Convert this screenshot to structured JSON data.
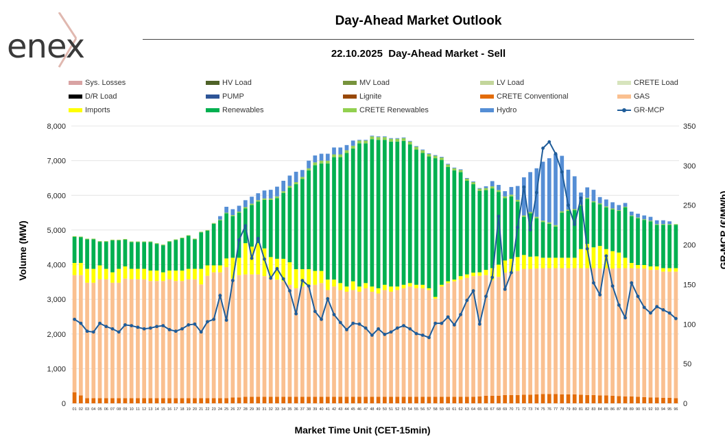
{
  "logo": {
    "text": "enex"
  },
  "header": {
    "title": "Day-Ahead Market Outlook",
    "subtitle": "22.10.2025  Day-Ahead Market - Sell"
  },
  "legend": [
    {
      "label": "Sys. Losses",
      "color": "#d9a3a3"
    },
    {
      "label": "HV Load",
      "color": "#4f6228"
    },
    {
      "label": "MV Load",
      "color": "#77933c"
    },
    {
      "label": "LV Load",
      "color": "#c3d69b"
    },
    {
      "label": "CRETE Load",
      "color": "#d7e4bd"
    },
    {
      "label": "D/R Load",
      "color": "#000000"
    },
    {
      "label": "PUMP",
      "color": "#2e5597"
    },
    {
      "label": "Lignite",
      "color": "#984807"
    },
    {
      "label": "CRETE Conventional",
      "color": "#e36c09"
    },
    {
      "label": "GAS",
      "color": "#fac090"
    },
    {
      "label": "Imports",
      "color": "#ffff00"
    },
    {
      "label": "Renewables",
      "color": "#00b050"
    },
    {
      "label": "CRETE Renewables",
      "color": "#92d050"
    },
    {
      "label": "Hydro",
      "color": "#558ed5"
    },
    {
      "label": "GR-MCP",
      "color": "#1f5c99"
    }
  ],
  "chart_data": {
    "type": "bar",
    "title": "22.10.2025  Day-Ahead Market - Sell",
    "xlabel": "Market Time Unit (CET-15min)",
    "ylabel": "Volume (MW)",
    "y2label": "GR-MCP (€/MWh)",
    "ylim": [
      0,
      8000
    ],
    "y2lim": [
      0,
      350
    ],
    "yticks": [
      "0",
      "1,000",
      "2,000",
      "3,000",
      "4,000",
      "5,000",
      "6,000",
      "7,000",
      "8,000"
    ],
    "y2ticks": [
      "0",
      "50",
      "100",
      "150",
      "200",
      "250",
      "300",
      "350"
    ],
    "categories": [
      "01",
      "02",
      "03",
      "04",
      "05",
      "06",
      "07",
      "08",
      "09",
      "10",
      "11",
      "12",
      "13",
      "14",
      "15",
      "16",
      "17",
      "18",
      "19",
      "20",
      "21",
      "22",
      "23",
      "24",
      "25",
      "26",
      "27",
      "28",
      "29",
      "30",
      "31",
      "32",
      "33",
      "34",
      "35",
      "36",
      "37",
      "38",
      "39",
      "40",
      "41",
      "42",
      "43",
      "44",
      "45",
      "46",
      "47",
      "48",
      "49",
      "50",
      "51",
      "52",
      "53",
      "54",
      "55",
      "56",
      "57",
      "58",
      "59",
      "60",
      "61",
      "62",
      "63",
      "64",
      "65",
      "66",
      "67",
      "68",
      "69",
      "70",
      "71",
      "72",
      "73",
      "74",
      "75",
      "76",
      "77",
      "78",
      "79",
      "80",
      "81",
      "82",
      "83",
      "84",
      "85",
      "86",
      "87",
      "88",
      "89",
      "90",
      "91",
      "92",
      "93",
      "94",
      "95",
      "96"
    ],
    "stacked_series": [
      {
        "name": "CRETE Conventional",
        "color": "#e36c09",
        "values": [
          320,
          230,
          150,
          150,
          150,
          150,
          150,
          150,
          150,
          150,
          150,
          150,
          150,
          150,
          150,
          150,
          150,
          150,
          150,
          150,
          150,
          150,
          150,
          150,
          150,
          170,
          170,
          190,
          190,
          190,
          190,
          190,
          190,
          190,
          190,
          190,
          190,
          190,
          190,
          190,
          190,
          190,
          190,
          190,
          190,
          190,
          190,
          190,
          190,
          190,
          190,
          190,
          190,
          190,
          190,
          190,
          190,
          190,
          190,
          190,
          190,
          190,
          190,
          190,
          200,
          220,
          220,
          220,
          240,
          240,
          240,
          250,
          250,
          260,
          270,
          270,
          270,
          260,
          260,
          260,
          250,
          240,
          240,
          230,
          230,
          220,
          210,
          200,
          200,
          190,
          180,
          170,
          170,
          160,
          160,
          150
        ]
      },
      {
        "name": "GAS",
        "color": "#fac090",
        "values": [
          3380,
          3470,
          3330,
          3330,
          3430,
          3430,
          3330,
          3330,
          3450,
          3430,
          3430,
          3430,
          3380,
          3380,
          3380,
          3430,
          3380,
          3380,
          3430,
          3430,
          3280,
          3530,
          3630,
          3630,
          3780,
          3430,
          3530,
          3530,
          3530,
          3530,
          3480,
          3430,
          3380,
          3330,
          3230,
          3130,
          3180,
          3230,
          3230,
          3280,
          3080,
          3180,
          3080,
          3030,
          3080,
          3030,
          3130,
          3030,
          2980,
          3080,
          3030,
          3080,
          3130,
          3180,
          3130,
          3130,
          3080,
          2830,
          3180,
          3280,
          3330,
          3380,
          3430,
          3480,
          3480,
          3480,
          3330,
          3430,
          3530,
          3530,
          3580,
          3630,
          3630,
          3630,
          3630,
          3630,
          3630,
          3640,
          3640,
          3640,
          3650,
          3660,
          3660,
          3660,
          3670,
          3670,
          3690,
          3700,
          3700,
          3700,
          3710,
          3680,
          3680,
          3640,
          3640,
          3650
        ]
      },
      {
        "name": "Imports",
        "color": "#ffff00",
        "values": [
          350,
          350,
          400,
          400,
          400,
          300,
          300,
          400,
          350,
          300,
          300,
          300,
          300,
          300,
          250,
          250,
          300,
          300,
          300,
          300,
          450,
          300,
          200,
          200,
          250,
          600,
          500,
          900,
          800,
          900,
          800,
          600,
          600,
          650,
          650,
          550,
          500,
          450,
          400,
          350,
          300,
          200,
          200,
          150,
          250,
          150,
          150,
          150,
          150,
          150,
          150,
          100,
          100,
          100,
          100,
          100,
          50,
          50,
          50,
          50,
          50,
          100,
          100,
          100,
          100,
          150,
          350,
          350,
          350,
          400,
          400,
          400,
          350,
          350,
          300,
          300,
          300,
          300,
          300,
          300,
          550,
          700,
          600,
          650,
          550,
          500,
          450,
          300,
          150,
          100,
          100,
          100,
          100,
          100,
          100,
          100
        ]
      },
      {
        "name": "Renewables",
        "color": "#00b050",
        "values": [
          750,
          740,
          850,
          850,
          680,
          780,
          920,
          820,
          770,
          770,
          770,
          770,
          820,
          770,
          780,
          830,
          880,
          930,
          950,
          850,
          1050,
          1000,
          1200,
          1300,
          1300,
          1200,
          1300,
          1000,
          1200,
          1200,
          1400,
          1650,
          1750,
          1900,
          2150,
          2450,
          2600,
          2850,
          3050,
          3100,
          3350,
          3530,
          3630,
          3850,
          3830,
          4130,
          4030,
          4250,
          4280,
          4180,
          4180,
          4180,
          4150,
          4000,
          3900,
          3800,
          3800,
          4000,
          3600,
          3300,
          3150,
          3000,
          2700,
          2550,
          2350,
          2300,
          2300,
          2100,
          1800,
          1800,
          1600,
          1100,
          1250,
          1100,
          1030,
          980,
          900,
          1300,
          1350,
          1370,
          1250,
          1300,
          1300,
          1200,
          1200,
          1200,
          1200,
          1450,
          1350,
          1350,
          1300,
          1300,
          1200,
          1250,
          1250,
          1250
        ]
      },
      {
        "name": "CRETE Renewables",
        "color": "#92d050",
        "values": [
          20,
          20,
          20,
          20,
          20,
          20,
          20,
          20,
          20,
          20,
          20,
          20,
          20,
          20,
          20,
          20,
          20,
          20,
          20,
          20,
          20,
          20,
          20,
          20,
          20,
          30,
          30,
          40,
          40,
          40,
          40,
          40,
          50,
          50,
          50,
          60,
          60,
          60,
          80,
          80,
          80,
          80,
          80,
          80,
          80,
          80,
          80,
          80,
          80,
          80,
          80,
          80,
          80,
          80,
          80,
          80,
          70,
          70,
          70,
          70,
          60,
          60,
          60,
          60,
          60,
          60,
          60,
          50,
          50,
          50,
          50,
          40,
          40,
          40,
          40,
          40,
          40,
          40,
          40,
          30,
          30,
          30,
          30,
          30,
          30,
          30,
          20,
          20,
          20,
          20,
          20,
          20,
          20,
          20,
          20,
          20
        ]
      },
      {
        "name": "Hydro",
        "color": "#558ed5",
        "values": [
          0,
          0,
          0,
          0,
          0,
          0,
          0,
          0,
          0,
          0,
          0,
          0,
          0,
          0,
          0,
          0,
          0,
          0,
          0,
          0,
          0,
          0,
          0,
          100,
          170,
          170,
          170,
          200,
          200,
          200,
          230,
          250,
          280,
          300,
          300,
          300,
          200,
          220,
          200,
          200,
          200,
          200,
          200,
          150,
          150,
          20,
          20,
          20,
          20,
          20,
          20,
          20,
          20,
          20,
          20,
          20,
          20,
          20,
          20,
          20,
          20,
          20,
          20,
          20,
          20,
          50,
          150,
          150,
          150,
          220,
          400,
          1100,
          1150,
          1400,
          1700,
          1850,
          2050,
          1600,
          1150,
          950,
          350,
          300,
          330,
          180,
          200,
          180,
          150,
          110,
          110,
          110,
          110,
          110,
          110,
          110,
          80,
          0
        ]
      }
    ],
    "line_series": {
      "name": "GR-MCP",
      "axis": "right",
      "color": "#1f5c99",
      "values": [
        106,
        101,
        91,
        90,
        101,
        97,
        94,
        90,
        99,
        98,
        96,
        94,
        95,
        97,
        98,
        93,
        91,
        94,
        99,
        100,
        90,
        103,
        106,
        136,
        105,
        155,
        206,
        224,
        183,
        208,
        182,
        158,
        170,
        157,
        142,
        113,
        155,
        148,
        116,
        106,
        132,
        112,
        102,
        93,
        101,
        100,
        95,
        86,
        94,
        87,
        90,
        95,
        98,
        94,
        88,
        86,
        83,
        101,
        101,
        109,
        99,
        112,
        130,
        142,
        100,
        135,
        159,
        236,
        144,
        165,
        222,
        273,
        219,
        266,
        322,
        330,
        315,
        292,
        250,
        226,
        259,
        195,
        152,
        137,
        186,
        148,
        124,
        108,
        152,
        135,
        121,
        114,
        122,
        118,
        114,
        107
      ]
    }
  }
}
